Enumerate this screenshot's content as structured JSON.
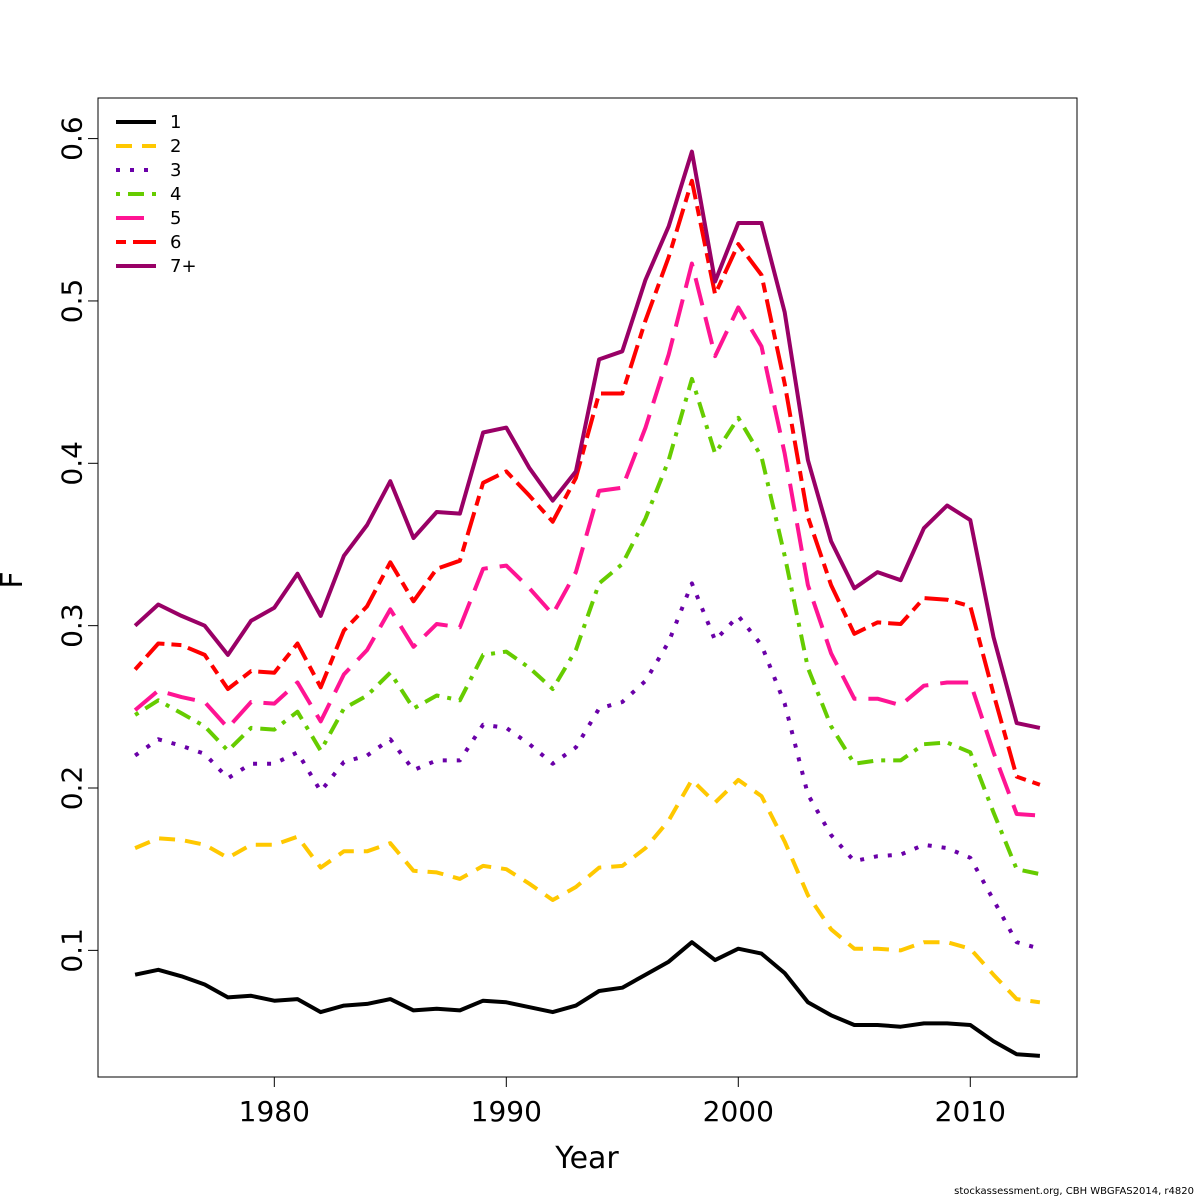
{
  "chart_data": {
    "type": "line",
    "xlabel": "Year",
    "ylabel": "F",
    "xlim": [
      1972.4,
      2014.6
    ],
    "ylim": [
      0.022,
      0.625
    ],
    "xticks": [
      1980,
      1990,
      2000,
      2010
    ],
    "yticks": [
      0.1,
      0.2,
      0.3,
      0.4,
      0.5,
      0.6
    ],
    "legend_position": "top-left",
    "x": [
      1974,
      1975,
      1976,
      1977,
      1978,
      1979,
      1980,
      1981,
      1982,
      1983,
      1984,
      1985,
      1986,
      1987,
      1988,
      1989,
      1990,
      1991,
      1992,
      1993,
      1994,
      1995,
      1996,
      1997,
      1998,
      1999,
      2000,
      2001,
      2002,
      2003,
      2004,
      2005,
      2006,
      2007,
      2008,
      2009,
      2010,
      2011,
      2012,
      2013
    ],
    "series": [
      {
        "name": "1",
        "color": "#000000",
        "dash": "solid",
        "values": [
          0.085,
          0.088,
          0.084,
          0.079,
          0.071,
          0.072,
          0.069,
          0.07,
          0.062,
          0.066,
          0.067,
          0.07,
          0.063,
          0.064,
          0.063,
          0.069,
          0.068,
          0.065,
          0.062,
          0.066,
          0.075,
          0.077,
          0.085,
          0.093,
          0.105,
          0.094,
          0.101,
          0.098,
          0.086,
          0.068,
          0.06,
          0.054,
          0.054,
          0.053,
          0.055,
          0.055,
          0.054,
          0.044,
          0.036,
          0.035
        ]
      },
      {
        "name": "2",
        "color": "#FFC800",
        "dash": "dashed",
        "values": [
          0.163,
          0.169,
          0.168,
          0.165,
          0.157,
          0.165,
          0.165,
          0.17,
          0.151,
          0.161,
          0.161,
          0.166,
          0.149,
          0.148,
          0.144,
          0.152,
          0.15,
          0.141,
          0.131,
          0.139,
          0.151,
          0.152,
          0.163,
          0.18,
          0.205,
          0.191,
          0.205,
          0.195,
          0.167,
          0.134,
          0.113,
          0.101,
          0.101,
          0.1,
          0.105,
          0.105,
          0.101,
          0.085,
          0.07,
          0.068
        ]
      },
      {
        "name": "3",
        "color": "#6A00A8",
        "dash": "dotted",
        "values": [
          0.22,
          0.23,
          0.226,
          0.221,
          0.206,
          0.215,
          0.215,
          0.222,
          0.198,
          0.216,
          0.22,
          0.23,
          0.211,
          0.217,
          0.217,
          0.239,
          0.237,
          0.227,
          0.215,
          0.225,
          0.249,
          0.253,
          0.266,
          0.29,
          0.326,
          0.291,
          0.306,
          0.288,
          0.252,
          0.196,
          0.171,
          0.155,
          0.158,
          0.159,
          0.165,
          0.163,
          0.157,
          0.131,
          0.105,
          0.101
        ]
      },
      {
        "name": "4",
        "color": "#66CC00",
        "dash": "dotdash",
        "values": [
          0.245,
          0.254,
          0.246,
          0.238,
          0.223,
          0.237,
          0.236,
          0.247,
          0.223,
          0.249,
          0.257,
          0.271,
          0.249,
          0.257,
          0.254,
          0.282,
          0.284,
          0.274,
          0.261,
          0.285,
          0.326,
          0.338,
          0.366,
          0.402,
          0.452,
          0.406,
          0.428,
          0.404,
          0.343,
          0.274,
          0.238,
          0.215,
          0.217,
          0.217,
          0.227,
          0.228,
          0.222,
          0.185,
          0.15,
          0.147
        ]
      },
      {
        "name": "5",
        "color": "#FF1493",
        "dash": "longdash",
        "values": [
          0.248,
          0.26,
          0.256,
          0.253,
          0.237,
          0.253,
          0.252,
          0.265,
          0.241,
          0.27,
          0.285,
          0.31,
          0.287,
          0.301,
          0.299,
          0.335,
          0.337,
          0.323,
          0.307,
          0.333,
          0.383,
          0.385,
          0.422,
          0.467,
          0.523,
          0.466,
          0.496,
          0.472,
          0.406,
          0.325,
          0.283,
          0.255,
          0.255,
          0.251,
          0.263,
          0.265,
          0.265,
          0.222,
          0.184,
          0.183
        ]
      },
      {
        "name": "6",
        "color": "#FF0000",
        "dash": "twodash",
        "values": [
          0.273,
          0.289,
          0.288,
          0.282,
          0.261,
          0.272,
          0.271,
          0.289,
          0.262,
          0.297,
          0.312,
          0.339,
          0.315,
          0.335,
          0.34,
          0.388,
          0.395,
          0.38,
          0.364,
          0.391,
          0.443,
          0.443,
          0.488,
          0.527,
          0.574,
          0.504,
          0.535,
          0.516,
          0.449,
          0.367,
          0.325,
          0.295,
          0.302,
          0.301,
          0.317,
          0.316,
          0.312,
          0.258,
          0.207,
          0.202
        ]
      },
      {
        "name": "7+",
        "color": "#990066",
        "dash": "solid",
        "values": [
          0.3,
          0.313,
          0.306,
          0.3,
          0.282,
          0.303,
          0.311,
          0.332,
          0.306,
          0.343,
          0.362,
          0.389,
          0.354,
          0.37,
          0.369,
          0.419,
          0.422,
          0.397,
          0.377,
          0.395,
          0.464,
          0.469,
          0.513,
          0.546,
          0.592,
          0.512,
          0.548,
          0.548,
          0.493,
          0.402,
          0.352,
          0.323,
          0.333,
          0.328,
          0.36,
          0.374,
          0.365,
          0.293,
          0.24,
          0.237
        ]
      }
    ]
  },
  "footer": "stockassessment.org, CBH    WBGFAS2014, r4820"
}
